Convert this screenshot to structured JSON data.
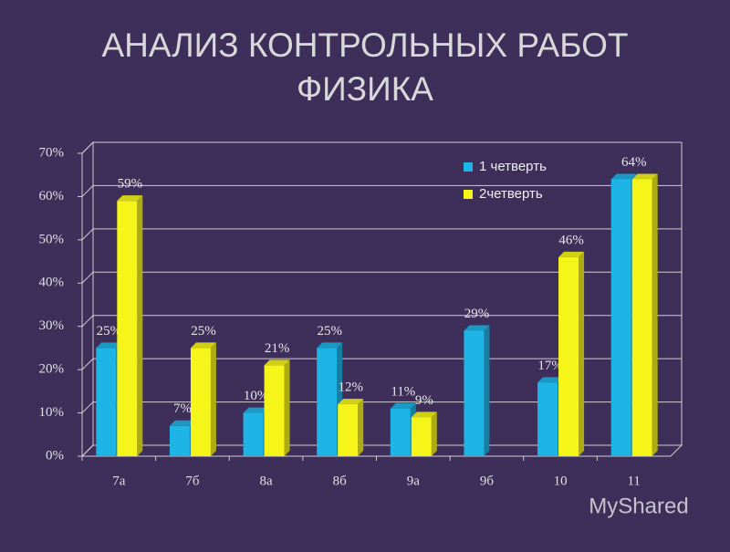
{
  "chart_data": {
    "type": "bar3d",
    "title": [
      "АНАЛИЗ КОНТРОЛЬНЫХ РАБОТ",
      "ФИЗИКА"
    ],
    "categories": [
      "7а",
      "7б",
      "8а",
      "8б",
      "9а",
      "9б",
      "10",
      "11"
    ],
    "series": [
      {
        "name": "1 четверть",
        "color": "#1fb4e6",
        "values": [
          25,
          7,
          10,
          25,
          11,
          29,
          17,
          64
        ],
        "value_labels": [
          "25%",
          "7%",
          "10%",
          "25%",
          "11%",
          "29%",
          "17%",
          "64%"
        ]
      },
      {
        "name": "2четверть",
        "color": "#f5f51a",
        "values": [
          59,
          25,
          21,
          12,
          9,
          null,
          46,
          64
        ],
        "value_labels": [
          "59%",
          "25%",
          "21%",
          "12%",
          "9%",
          null,
          "46%",
          null
        ]
      }
    ],
    "ylim": [
      0,
      70
    ],
    "yticks": [
      {
        "value": 0,
        "label": "0%"
      },
      {
        "value": 10,
        "label": "10%"
      },
      {
        "value": 20,
        "label": "20%"
      },
      {
        "value": 30,
        "label": "30%"
      },
      {
        "value": 40,
        "label": "40%"
      },
      {
        "value": 50,
        "label": "50%"
      },
      {
        "value": 60,
        "label": "60%"
      },
      {
        "value": 70,
        "label": "70%"
      }
    ],
    "grid": true,
    "legend": "upper right",
    "watermark": "MyShared"
  }
}
